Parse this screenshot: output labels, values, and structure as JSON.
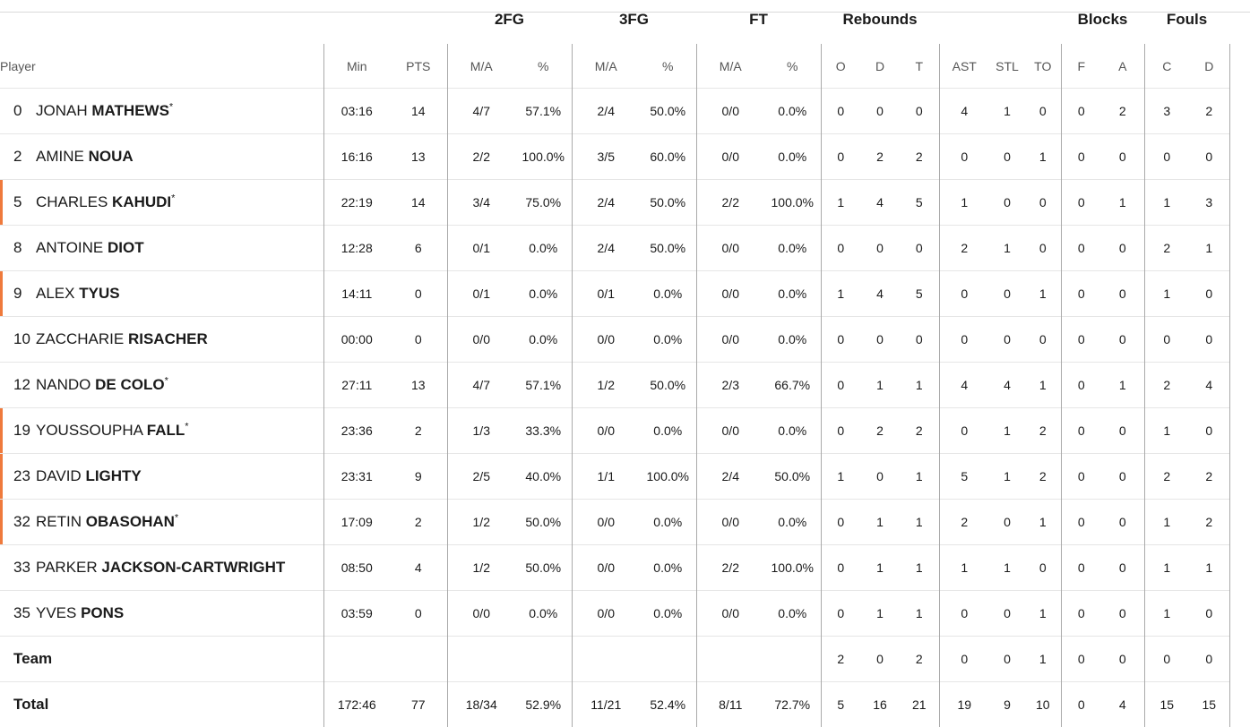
{
  "groups": {
    "fg2": "2FG",
    "fg3": "3FG",
    "ft": "FT",
    "rebounds": "Rebounds",
    "blocks": "Blocks",
    "fouls": "Fouls"
  },
  "headers": {
    "player": "Player",
    "min": "Min",
    "pts": "PTS",
    "fg2_ma": "M/A",
    "fg2_pct": "%",
    "fg3_ma": "M/A",
    "fg3_pct": "%",
    "ft_ma": "M/A",
    "ft_pct": "%",
    "reb_o": "O",
    "reb_d": "D",
    "reb_t": "T",
    "ast": "AST",
    "stl": "STL",
    "to": "TO",
    "blk_f": "F",
    "blk_a": "A",
    "foul_c": "C",
    "foul_d": "D"
  },
  "players": [
    {
      "num": "0",
      "first": "JONAH",
      "last": "MATHEWS",
      "star": "*",
      "accent": false,
      "min": "03:16",
      "pts": "14",
      "fg2_ma": "4/7",
      "fg2_pct": "57.1%",
      "fg3_ma": "2/4",
      "fg3_pct": "50.0%",
      "ft_ma": "0/0",
      "ft_pct": "0.0%",
      "reb_o": "0",
      "reb_d": "0",
      "reb_t": "0",
      "ast": "4",
      "stl": "1",
      "to": "0",
      "blk_f": "0",
      "blk_a": "2",
      "foul_c": "3",
      "foul_d": "2"
    },
    {
      "num": "2",
      "first": "AMINE",
      "last": "NOUA",
      "star": "",
      "accent": false,
      "min": "16:16",
      "pts": "13",
      "fg2_ma": "2/2",
      "fg2_pct": "100.0%",
      "fg3_ma": "3/5",
      "fg3_pct": "60.0%",
      "ft_ma": "0/0",
      "ft_pct": "0.0%",
      "reb_o": "0",
      "reb_d": "2",
      "reb_t": "2",
      "ast": "0",
      "stl": "0",
      "to": "1",
      "blk_f": "0",
      "blk_a": "0",
      "foul_c": "0",
      "foul_d": "0"
    },
    {
      "num": "5",
      "first": "CHARLES",
      "last": "KAHUDI",
      "star": "*",
      "accent": true,
      "min": "22:19",
      "pts": "14",
      "fg2_ma": "3/4",
      "fg2_pct": "75.0%",
      "fg3_ma": "2/4",
      "fg3_pct": "50.0%",
      "ft_ma": "2/2",
      "ft_pct": "100.0%",
      "reb_o": "1",
      "reb_d": "4",
      "reb_t": "5",
      "ast": "1",
      "stl": "0",
      "to": "0",
      "blk_f": "0",
      "blk_a": "1",
      "foul_c": "1",
      "foul_d": "3"
    },
    {
      "num": "8",
      "first": "ANTOINE",
      "last": "DIOT",
      "star": "",
      "accent": false,
      "min": "12:28",
      "pts": "6",
      "fg2_ma": "0/1",
      "fg2_pct": "0.0%",
      "fg3_ma": "2/4",
      "fg3_pct": "50.0%",
      "ft_ma": "0/0",
      "ft_pct": "0.0%",
      "reb_o": "0",
      "reb_d": "0",
      "reb_t": "0",
      "ast": "2",
      "stl": "1",
      "to": "0",
      "blk_f": "0",
      "blk_a": "0",
      "foul_c": "2",
      "foul_d": "1"
    },
    {
      "num": "9",
      "first": "ALEX",
      "last": "TYUS",
      "star": "",
      "accent": true,
      "min": "14:11",
      "pts": "0",
      "fg2_ma": "0/1",
      "fg2_pct": "0.0%",
      "fg3_ma": "0/1",
      "fg3_pct": "0.0%",
      "ft_ma": "0/0",
      "ft_pct": "0.0%",
      "reb_o": "1",
      "reb_d": "4",
      "reb_t": "5",
      "ast": "0",
      "stl": "0",
      "to": "1",
      "blk_f": "0",
      "blk_a": "0",
      "foul_c": "1",
      "foul_d": "0"
    },
    {
      "num": "10",
      "first": "ZACCHARIE",
      "last": "RISACHER",
      "star": "",
      "accent": false,
      "min": "00:00",
      "pts": "0",
      "fg2_ma": "0/0",
      "fg2_pct": "0.0%",
      "fg3_ma": "0/0",
      "fg3_pct": "0.0%",
      "ft_ma": "0/0",
      "ft_pct": "0.0%",
      "reb_o": "0",
      "reb_d": "0",
      "reb_t": "0",
      "ast": "0",
      "stl": "0",
      "to": "0",
      "blk_f": "0",
      "blk_a": "0",
      "foul_c": "0",
      "foul_d": "0"
    },
    {
      "num": "12",
      "first": "NANDO",
      "last": "DE COLO",
      "star": "*",
      "accent": false,
      "min": "27:11",
      "pts": "13",
      "fg2_ma": "4/7",
      "fg2_pct": "57.1%",
      "fg3_ma": "1/2",
      "fg3_pct": "50.0%",
      "ft_ma": "2/3",
      "ft_pct": "66.7%",
      "reb_o": "0",
      "reb_d": "1",
      "reb_t": "1",
      "ast": "4",
      "stl": "4",
      "to": "1",
      "blk_f": "0",
      "blk_a": "1",
      "foul_c": "2",
      "foul_d": "4"
    },
    {
      "num": "19",
      "first": "YOUSSOUPHA",
      "last": "FALL",
      "star": "*",
      "accent": true,
      "min": "23:36",
      "pts": "2",
      "fg2_ma": "1/3",
      "fg2_pct": "33.3%",
      "fg3_ma": "0/0",
      "fg3_pct": "0.0%",
      "ft_ma": "0/0",
      "ft_pct": "0.0%",
      "reb_o": "0",
      "reb_d": "2",
      "reb_t": "2",
      "ast": "0",
      "stl": "1",
      "to": "2",
      "blk_f": "0",
      "blk_a": "0",
      "foul_c": "1",
      "foul_d": "0"
    },
    {
      "num": "23",
      "first": "DAVID",
      "last": "LIGHTY",
      "star": "",
      "accent": true,
      "min": "23:31",
      "pts": "9",
      "fg2_ma": "2/5",
      "fg2_pct": "40.0%",
      "fg3_ma": "1/1",
      "fg3_pct": "100.0%",
      "ft_ma": "2/4",
      "ft_pct": "50.0%",
      "reb_o": "1",
      "reb_d": "0",
      "reb_t": "1",
      "ast": "5",
      "stl": "1",
      "to": "2",
      "blk_f": "0",
      "blk_a": "0",
      "foul_c": "2",
      "foul_d": "2"
    },
    {
      "num": "32",
      "first": "RETIN",
      "last": "OBASOHAN",
      "star": "*",
      "accent": true,
      "min": "17:09",
      "pts": "2",
      "fg2_ma": "1/2",
      "fg2_pct": "50.0%",
      "fg3_ma": "0/0",
      "fg3_pct": "0.0%",
      "ft_ma": "0/0",
      "ft_pct": "0.0%",
      "reb_o": "0",
      "reb_d": "1",
      "reb_t": "1",
      "ast": "2",
      "stl": "0",
      "to": "1",
      "blk_f": "0",
      "blk_a": "0",
      "foul_c": "1",
      "foul_d": "2"
    },
    {
      "num": "33",
      "first": "PARKER",
      "last": "JACKSON-CARTWRIGHT",
      "star": "",
      "accent": false,
      "min": "08:50",
      "pts": "4",
      "fg2_ma": "1/2",
      "fg2_pct": "50.0%",
      "fg3_ma": "0/0",
      "fg3_pct": "0.0%",
      "ft_ma": "2/2",
      "ft_pct": "100.0%",
      "reb_o": "0",
      "reb_d": "1",
      "reb_t": "1",
      "ast": "1",
      "stl": "1",
      "to": "0",
      "blk_f": "0",
      "blk_a": "0",
      "foul_c": "1",
      "foul_d": "1"
    },
    {
      "num": "35",
      "first": "YVES",
      "last": "PONS",
      "star": "",
      "accent": false,
      "min": "03:59",
      "pts": "0",
      "fg2_ma": "0/0",
      "fg2_pct": "0.0%",
      "fg3_ma": "0/0",
      "fg3_pct": "0.0%",
      "ft_ma": "0/0",
      "ft_pct": "0.0%",
      "reb_o": "0",
      "reb_d": "1",
      "reb_t": "1",
      "ast": "0",
      "stl": "0",
      "to": "1",
      "blk_f": "0",
      "blk_a": "0",
      "foul_c": "1",
      "foul_d": "0"
    }
  ],
  "team": {
    "label": "Team",
    "reb_o": "2",
    "reb_d": "0",
    "reb_t": "2",
    "ast": "0",
    "stl": "0",
    "to": "1",
    "blk_f": "0",
    "blk_a": "0",
    "foul_c": "0",
    "foul_d": "0"
  },
  "total": {
    "label": "Total",
    "min": "172:46",
    "pts": "77",
    "fg2_ma": "18/34",
    "fg2_pct": "52.9%",
    "fg3_ma": "11/21",
    "fg3_pct": "52.4%",
    "ft_ma": "8/11",
    "ft_pct": "72.7%",
    "reb_o": "5",
    "reb_d": "16",
    "reb_t": "21",
    "ast": "19",
    "stl": "9",
    "to": "10",
    "blk_f": "0",
    "blk_a": "4",
    "foul_c": "15",
    "foul_d": "15"
  },
  "accent_color": "#ef7a3c"
}
